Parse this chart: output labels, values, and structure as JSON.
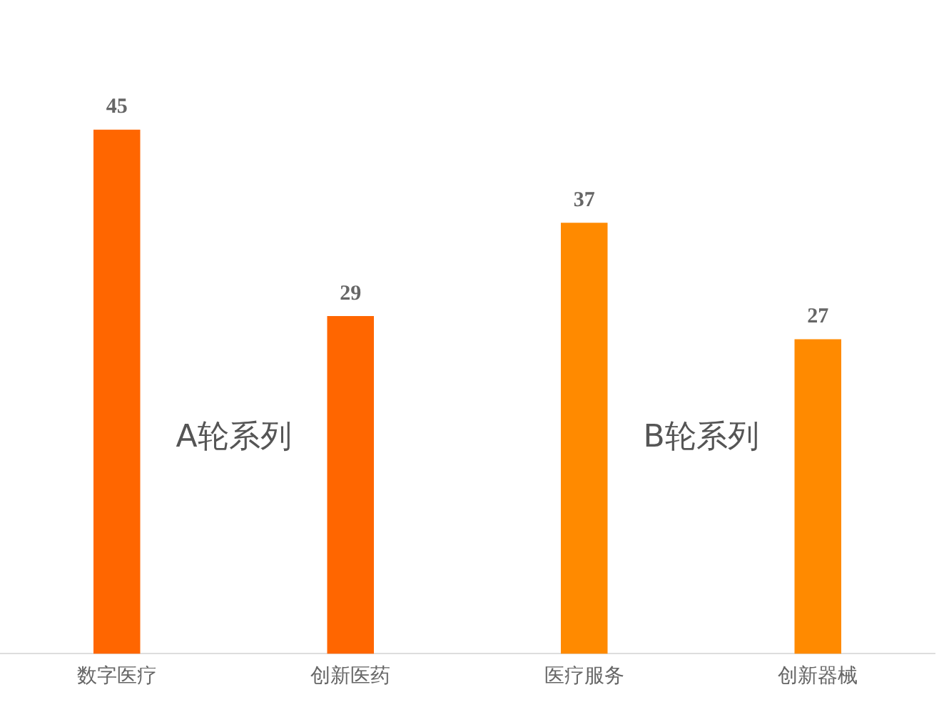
{
  "chart_data": {
    "type": "bar",
    "categories": [
      "数字医疗",
      "创新医药",
      "医疗服务",
      "创新器械"
    ],
    "values": [
      45,
      29,
      37,
      27
    ],
    "colors": [
      "#ff6600",
      "#ff6600",
      "#ff8a00",
      "#ff8a00"
    ],
    "data_labels": true,
    "annotations": [
      "A轮系列",
      "B轮系列"
    ],
    "grid": false,
    "legend": false
  }
}
